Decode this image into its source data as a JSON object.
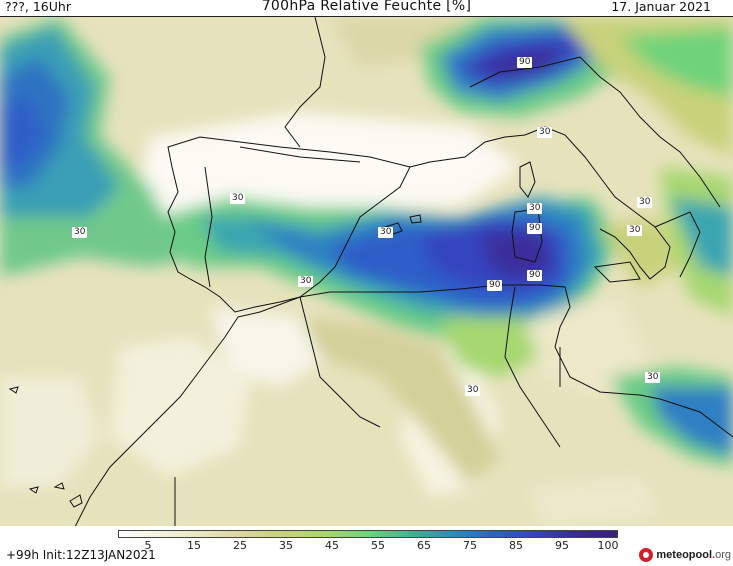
{
  "header": {
    "left": "???, 16Uhr",
    "title": "700hPa Relative Feuchte [%]",
    "date": "17. Januar 2021"
  },
  "legend": {
    "ticks": [
      "5",
      "15",
      "25",
      "35",
      "45",
      "55",
      "65",
      "75",
      "85",
      "95",
      "100"
    ],
    "colors": [
      "#ffffff",
      "#f5f3dc",
      "#e9e6bf",
      "#dbd59d",
      "#c8d27a",
      "#a6d76f",
      "#6fd37a",
      "#38b98e",
      "#2e8fb8",
      "#2d63c8",
      "#3445c0",
      "#372a9c",
      "#3a1f7a"
    ]
  },
  "contour_labels": [
    "30",
    "30",
    "30",
    "30",
    "30",
    "30",
    "30",
    "30",
    "30",
    "90",
    "90",
    "90",
    "90",
    "30"
  ],
  "footer": {
    "run": "+99h Init:12Z13JAN2021"
  },
  "logo": {
    "name": "meteopool",
    "dot": ".",
    "tld": "org"
  }
}
